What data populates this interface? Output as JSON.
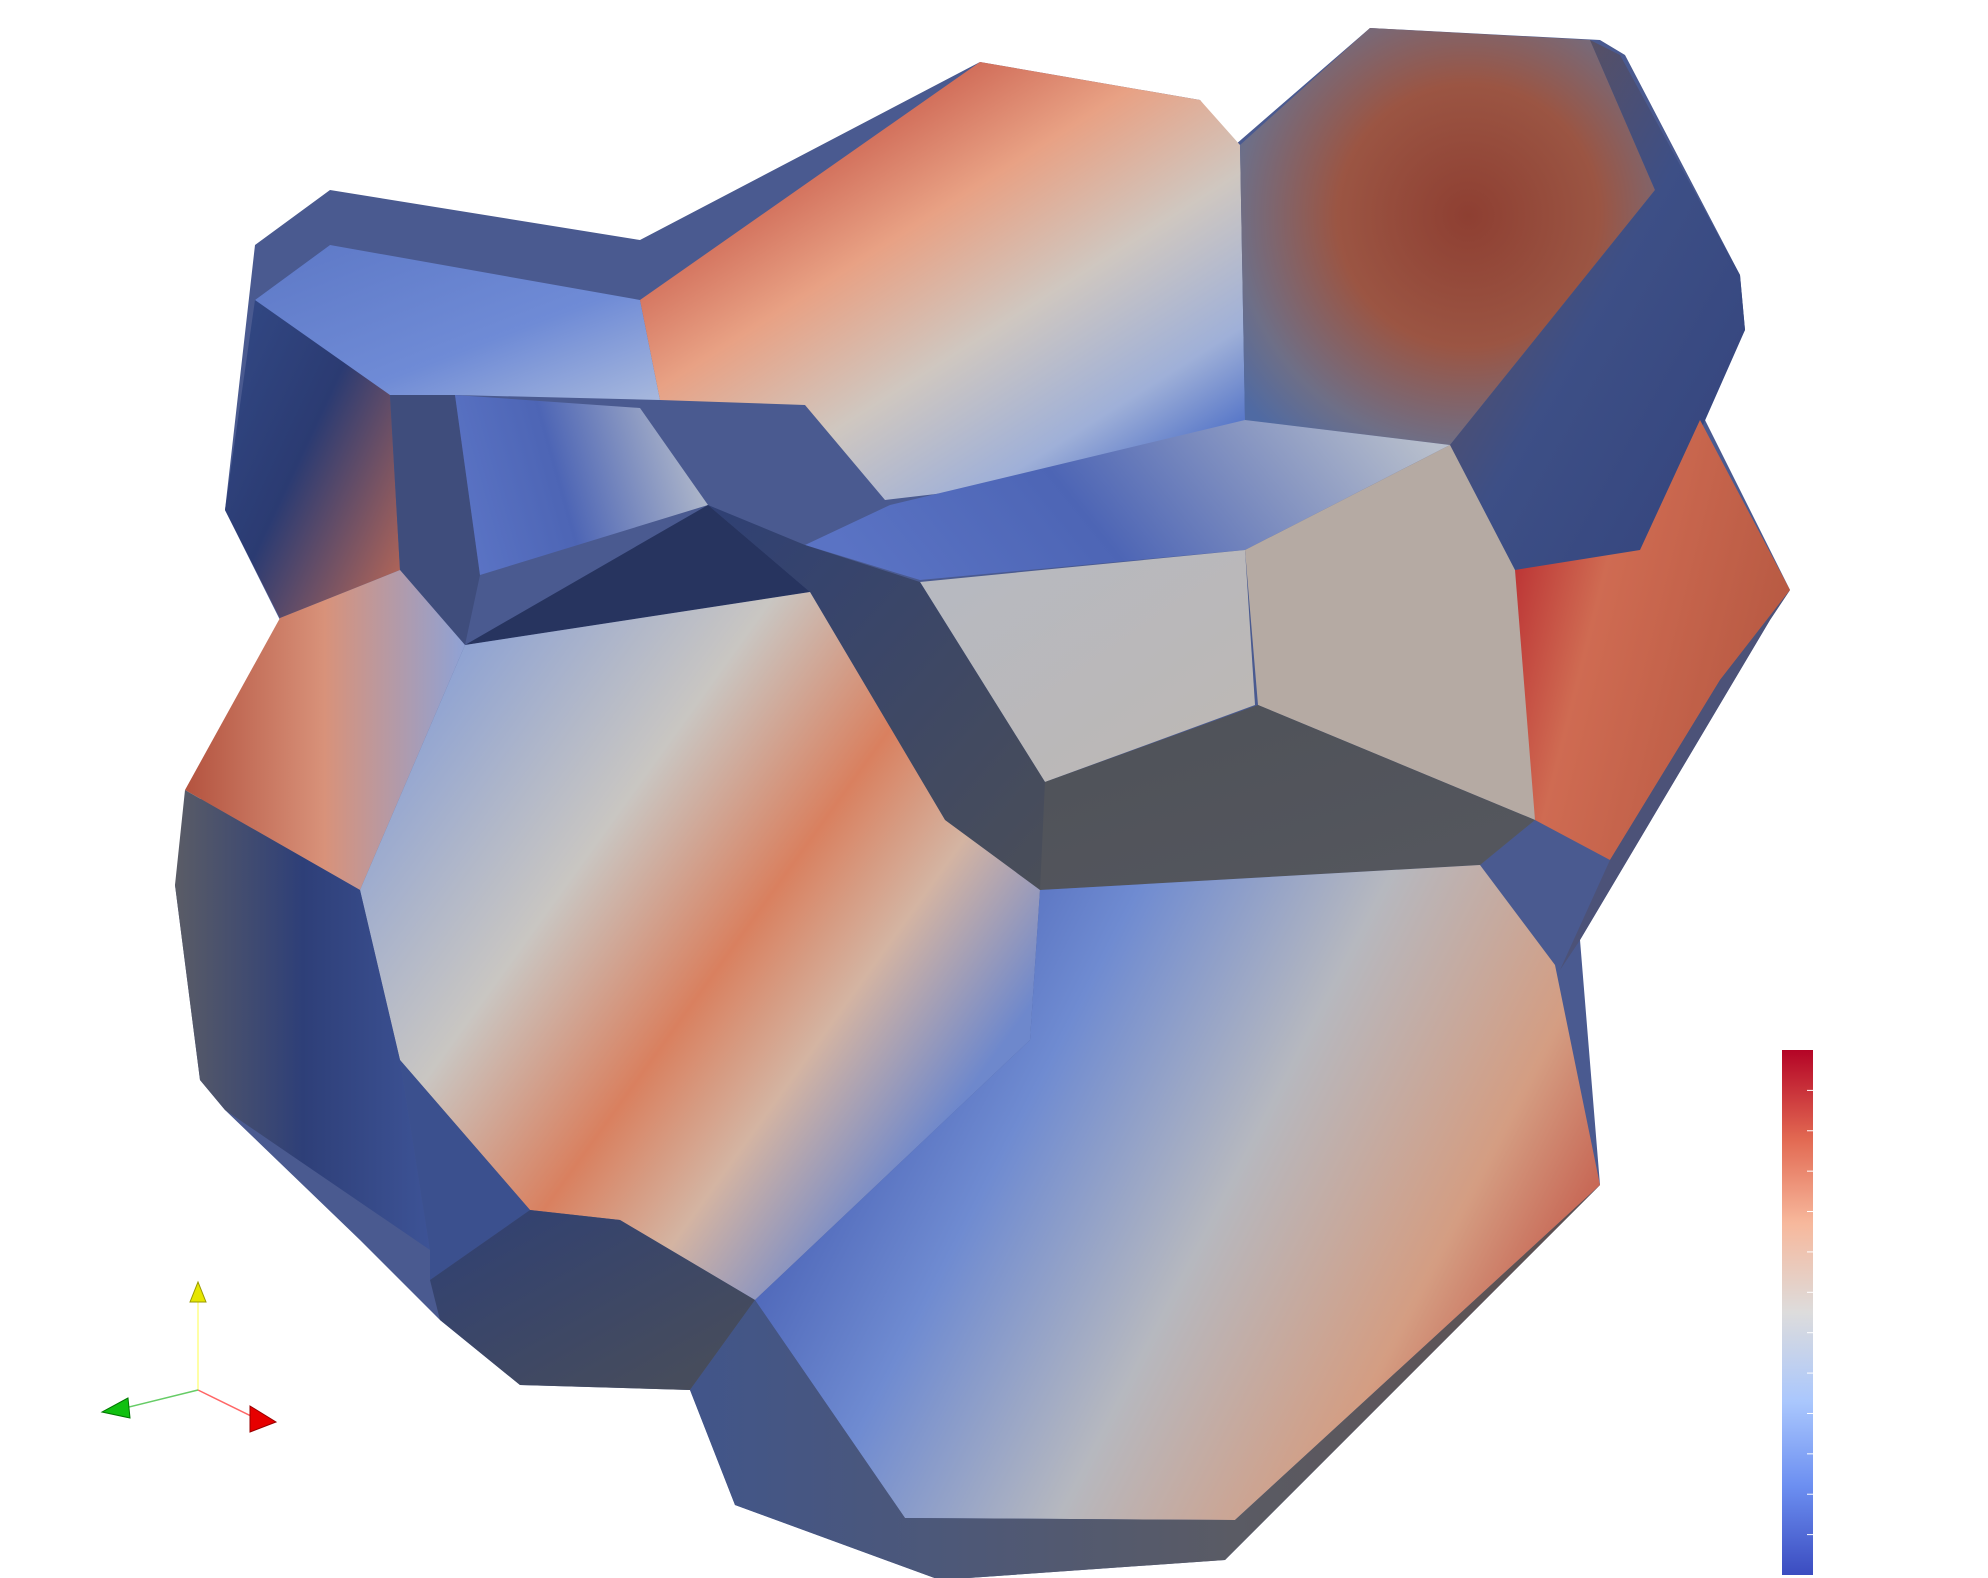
{
  "scene": {
    "title": "",
    "colormap": [
      "#3b4cc0",
      "#7b9ff9",
      "#c0d4f5",
      "#dddcdc",
      "#f2cbb7",
      "#ee8468",
      "#b40426"
    ]
  },
  "colorbar": {
    "ticks": 13,
    "colors": {
      "low": "#3b4cc0",
      "mid": "#dddcdc",
      "high": "#b40426"
    }
  },
  "orientation_axes": {
    "x_color": "#ff0000",
    "y_color": "#ffff00",
    "z_color": "#00cc00"
  }
}
